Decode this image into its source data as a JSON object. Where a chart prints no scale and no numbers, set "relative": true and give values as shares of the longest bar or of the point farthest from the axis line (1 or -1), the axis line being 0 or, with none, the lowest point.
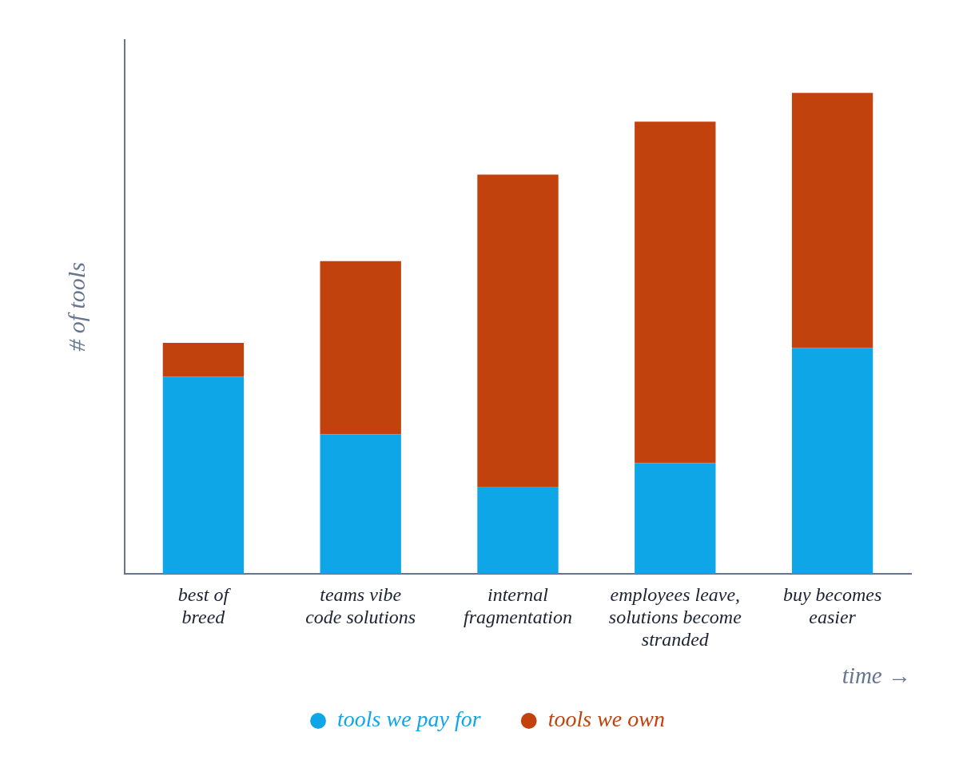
{
  "chart_data": {
    "type": "bar",
    "stacked": true,
    "relative": true,
    "categories": [
      "best of\nbreed",
      "teams vibe\ncode solutions",
      "internal\nfragmentation",
      "employees leave,\nsolutions become\nstranded",
      "buy becomes\neasier"
    ],
    "series": [
      {
        "name": "tools we pay for",
        "color": "#0fa6e8",
        "values": [
          0.41,
          0.29,
          0.18,
          0.23,
          0.47
        ]
      },
      {
        "name": "tools we own",
        "color": "#c1420d",
        "values": [
          0.07,
          0.36,
          0.65,
          0.71,
          0.53
        ]
      }
    ],
    "xlabel": "time →",
    "ylabel": "# of tools",
    "legend": "bottom"
  }
}
